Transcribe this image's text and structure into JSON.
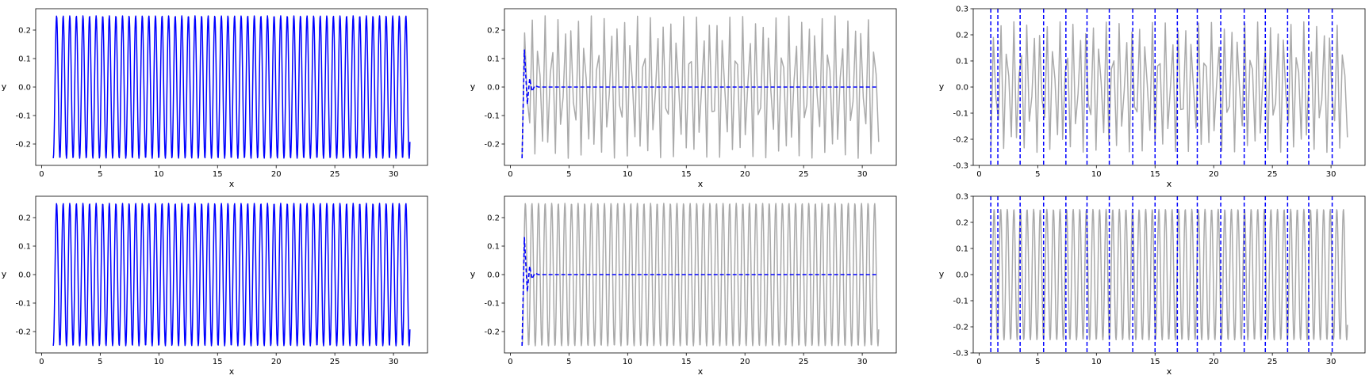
{
  "figure": {
    "background": "#ffffff",
    "line_color": "#0000ff",
    "grey_color": "#aaaaaa"
  },
  "chart_data": [
    {
      "type": "line",
      "title": "",
      "xlabel": "x",
      "ylabel": "y",
      "xlim": [
        -0.5,
        32.9
      ],
      "ylim": [
        -0.275,
        0.275
      ],
      "xticks": [
        0,
        5,
        10,
        15,
        20,
        25,
        30
      ],
      "yticks": [
        -0.2,
        -0.1,
        0.0,
        0.1,
        0.2
      ],
      "grid": false,
      "series": [
        {
          "style": "solid",
          "color": "#0000ff",
          "x_start": 1.0,
          "x_end": 31.4,
          "samples": 1000,
          "amplitude": 0.25,
          "frequency": 1.78,
          "phase": -0.2
        }
      ]
    },
    {
      "type": "line",
      "title": "",
      "xlabel": "x",
      "ylabel": "y",
      "xlim": [
        -0.5,
        32.9
      ],
      "ylim": [
        -0.275,
        0.275
      ],
      "xticks": [
        0,
        5,
        10,
        15,
        20,
        25,
        30
      ],
      "yticks": [
        -0.2,
        -0.1,
        0.0,
        0.1,
        0.2
      ],
      "grid": false,
      "series": [
        {
          "style": "solid",
          "color": "#aaaaaa",
          "x_start": 1.0,
          "x_end": 31.4,
          "samples": 140,
          "amplitude": 0.25,
          "frequency": 1.78,
          "phase": -0.2
        },
        {
          "style": "dashed",
          "color": "#0000ff",
          "points": [
            [
              1.0,
              -0.25
            ],
            [
              1.2,
              0.13
            ],
            [
              1.45,
              -0.06
            ],
            [
              1.65,
              0.03
            ],
            [
              1.85,
              -0.015
            ],
            [
              2.1,
              0.005
            ],
            [
              2.4,
              0.0
            ],
            [
              31.3,
              0.0
            ]
          ]
        }
      ]
    },
    {
      "type": "line",
      "title": "",
      "xlabel": "x",
      "ylabel": "y",
      "xlim": [
        -0.5,
        32.9
      ],
      "ylim": [
        -0.3,
        0.3
      ],
      "xticks": [
        0,
        5,
        10,
        15,
        20,
        25,
        30
      ],
      "yticks": [
        -0.3,
        -0.2,
        -0.1,
        0.0,
        0.1,
        0.2,
        0.3
      ],
      "grid": false,
      "series": [
        {
          "style": "solid",
          "color": "#aaaaaa",
          "x_start": 1.0,
          "x_end": 31.4,
          "samples": 140,
          "amplitude": 0.25,
          "frequency": 1.78,
          "phase": -0.2
        }
      ],
      "vlines": [
        1.0,
        1.6,
        3.5,
        5.5,
        7.4,
        9.2,
        11.1,
        13.1,
        15.0,
        16.9,
        18.6,
        20.6,
        22.6,
        24.4,
        26.3,
        28.1,
        30.1
      ]
    },
    {
      "type": "line",
      "title": "",
      "xlabel": "x",
      "ylabel": "y",
      "xlim": [
        -0.5,
        32.9
      ],
      "ylim": [
        -0.275,
        0.275
      ],
      "xticks": [
        0,
        5,
        10,
        15,
        20,
        25,
        30
      ],
      "yticks": [
        -0.2,
        -0.1,
        0.0,
        0.1,
        0.2
      ],
      "grid": false,
      "series": [
        {
          "style": "solid",
          "color": "#0000ff",
          "x_start": 1.0,
          "x_end": 31.4,
          "samples": 1000,
          "amplitude": 0.25,
          "frequency": 1.78,
          "phase": -0.2
        }
      ]
    },
    {
      "type": "line",
      "title": "",
      "xlabel": "x",
      "ylabel": "y",
      "xlim": [
        -0.5,
        32.9
      ],
      "ylim": [
        -0.275,
        0.275
      ],
      "xticks": [
        0,
        5,
        10,
        15,
        20,
        25,
        30
      ],
      "yticks": [
        -0.2,
        -0.1,
        0.0,
        0.1,
        0.2
      ],
      "grid": false,
      "series": [
        {
          "style": "solid",
          "color": "#aaaaaa",
          "x_start": 1.0,
          "x_end": 31.4,
          "samples": 1000,
          "amplitude": 0.25,
          "frequency": 1.78,
          "phase": -0.2
        },
        {
          "style": "dashed",
          "color": "#0000ff",
          "points": [
            [
              1.0,
              -0.25
            ],
            [
              1.2,
              0.13
            ],
            [
              1.45,
              -0.06
            ],
            [
              1.65,
              0.03
            ],
            [
              1.85,
              -0.015
            ],
            [
              2.1,
              0.005
            ],
            [
              2.4,
              0.0
            ],
            [
              31.3,
              0.0
            ]
          ]
        }
      ]
    },
    {
      "type": "line",
      "title": "",
      "xlabel": "x",
      "ylabel": "y",
      "xlim": [
        -0.5,
        32.9
      ],
      "ylim": [
        -0.3,
        0.3
      ],
      "xticks": [
        0,
        5,
        10,
        15,
        20,
        25,
        30
      ],
      "yticks": [
        -0.3,
        -0.2,
        -0.1,
        0.0,
        0.1,
        0.2,
        0.3
      ],
      "grid": false,
      "series": [
        {
          "style": "solid",
          "color": "#aaaaaa",
          "x_start": 1.0,
          "x_end": 31.4,
          "samples": 1000,
          "amplitude": 0.25,
          "frequency": 1.78,
          "phase": -0.2
        }
      ],
      "vlines": [
        1.0,
        1.6,
        3.5,
        5.5,
        7.4,
        9.2,
        11.1,
        13.1,
        15.0,
        16.9,
        18.6,
        20.6,
        22.6,
        24.4,
        26.3,
        28.1,
        30.1
      ]
    }
  ]
}
